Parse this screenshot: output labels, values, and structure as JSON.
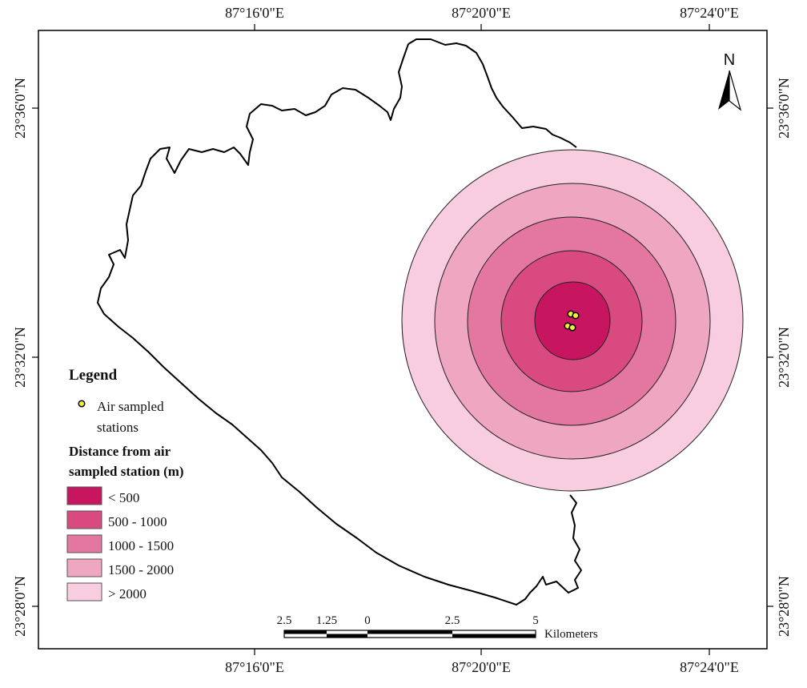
{
  "top_labels": [
    "87°16'0\"E",
    "87°20'0\"E",
    "87°24'0\"E"
  ],
  "bottom_labels": [
    "87°16'0\"E",
    "87°20'0\"E",
    "87°24'0\"E"
  ],
  "left_labels": [
    "23°36'0\"N",
    "23°32'0\"N",
    "23°28'0\"N"
  ],
  "right_labels": [
    "23°36'0\"N",
    "23°32'0\"N",
    "23°28'0\"N"
  ],
  "north_arrow": {
    "label": "N",
    "icon": "north-arrow-icon"
  },
  "legend": {
    "title": "Legend",
    "station_label_line1": "Air sampled",
    "station_label_line2": "stations",
    "distance_title_line1": "Distance from air",
    "distance_title_line2": "sampled station (m)",
    "classes": [
      {
        "label": "< 500",
        "color": "#c8155f"
      },
      {
        "label": "500 - 1000",
        "color": "#d84a80"
      },
      {
        "label": "1000 - 1500",
        "color": "#e3779f"
      },
      {
        "label": "1500 - 2000",
        "color": "#efa6c0"
      },
      {
        "label": "> 2000",
        "color": "#f9cde0"
      }
    ]
  },
  "scale_bar": {
    "labels": [
      "2.5",
      "1.25",
      "0",
      "2.5",
      "5"
    ],
    "unit": "Kilometers"
  },
  "colors": {
    "frame": "#000000",
    "boundary": "#000000",
    "station_fill": "#f2ef3a"
  }
}
